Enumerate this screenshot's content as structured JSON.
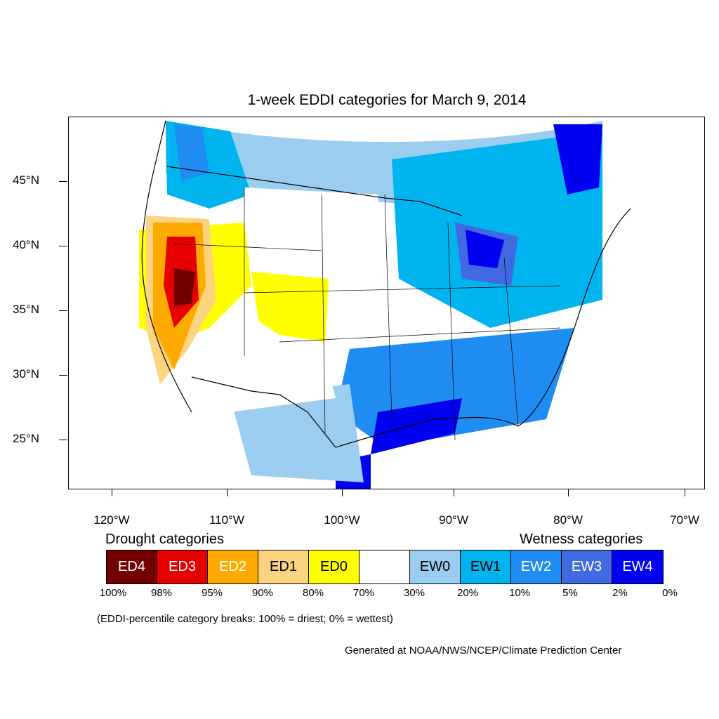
{
  "title": "1-week EDDI categories for March 9, 2014",
  "map": {
    "lat_labels": [
      "45°N",
      "40°N",
      "35°N",
      "30°N",
      "25°N"
    ],
    "lon_labels": [
      "120°W",
      "110°W",
      "100°W",
      "90°W",
      "80°W",
      "70°W"
    ],
    "colors": {
      "ED4": "#730000",
      "ED3": "#e60000",
      "ED2": "#ffaa00",
      "ED1": "#fcd37f",
      "ED0": "#ffff00",
      "neutral": "#ffffff",
      "EW0": "#9bcdf0",
      "EW1": "#00b4f0",
      "EW2": "#1e8cf0",
      "EW3": "#4169e1",
      "EW4": "#0000f0"
    }
  },
  "legend": {
    "drought_heading": "Drought categories",
    "wetness_heading": "Wetness categories",
    "boxes": [
      {
        "label": "ED4",
        "color": "#730000",
        "text_color": "#ffffff"
      },
      {
        "label": "ED3",
        "color": "#e60000",
        "text_color": "#ffffff"
      },
      {
        "label": "ED2",
        "color": "#ffaa00",
        "text_color": "#ffffff"
      },
      {
        "label": "ED1",
        "color": "#fcd37f",
        "text_color": "#000000"
      },
      {
        "label": "ED0",
        "color": "#ffff00",
        "text_color": "#000000"
      },
      {
        "label": "",
        "color": "#ffffff",
        "text_color": "#000000"
      },
      {
        "label": "EW0",
        "color": "#9bcdf0",
        "text_color": "#000000"
      },
      {
        "label": "EW1",
        "color": "#00b4f0",
        "text_color": "#000000"
      },
      {
        "label": "EW2",
        "color": "#1e8cf0",
        "text_color": "#ffffff"
      },
      {
        "label": "EW3",
        "color": "#4169e1",
        "text_color": "#ffffff"
      },
      {
        "label": "EW4",
        "color": "#0000f0",
        "text_color": "#ffffff"
      }
    ],
    "percentiles": [
      "100%",
      "98%",
      "95%",
      "90%",
      "80%",
      "70%",
      "30%",
      "20%",
      "10%",
      "5%",
      "2%",
      "0%"
    ],
    "note": "(EDDI-percentile category breaks: 100% = driest; 0% = wettest)"
  },
  "credit": "Generated at NOAA/NWS/NCEP/Climate Prediction Center"
}
